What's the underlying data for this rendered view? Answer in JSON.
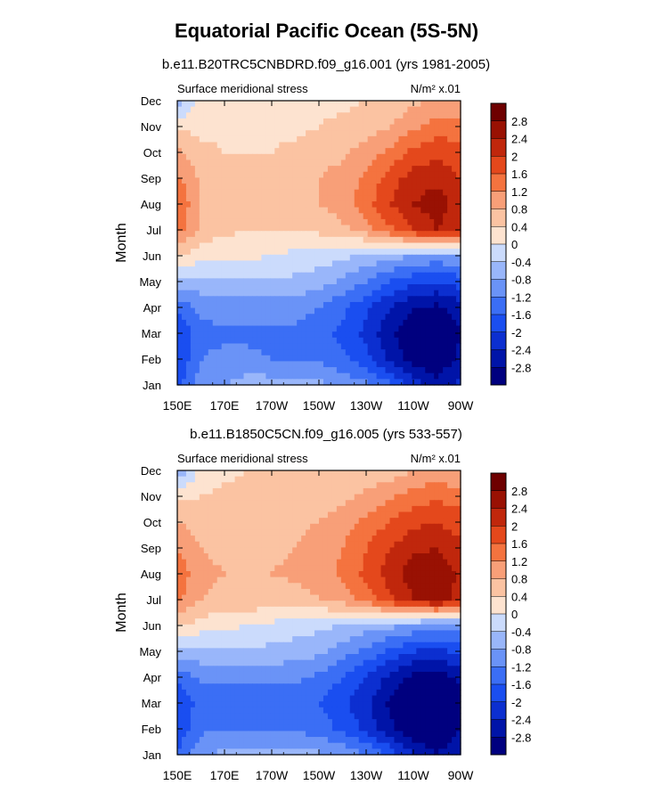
{
  "title": "Equatorial Pacific Ocean (5S-5N)",
  "colorscale": {
    "levels": [
      -2.8,
      -2.4,
      -2.0,
      -1.6,
      -1.2,
      -0.8,
      -0.4,
      0,
      0.4,
      0.8,
      1.2,
      1.6,
      2.0,
      2.4,
      2.8
    ],
    "colors": [
      "#00007f",
      "#0014a8",
      "#0c2fd0",
      "#1a4ef0",
      "#3b6ef5",
      "#6a93f7",
      "#99b6fa",
      "#cbdbfc",
      "#fde3d0",
      "#fbc3a2",
      "#f89f78",
      "#f4733f",
      "#e4481c",
      "#c0270c",
      "#991103",
      "#6e0000"
    ]
  },
  "chart_data": [
    {
      "type": "heatmap",
      "subtitle": "b.e11.B20TRC5CNBDRD.f09_g16.001 (yrs 1981-2005)",
      "left_label": "Surface meridional stress",
      "right_label": "N/m² x.01",
      "ylabel": "Month",
      "x_ticks": [
        "150E",
        "170E",
        "170W",
        "150W",
        "130W",
        "110W",
        "90W"
      ],
      "x": [
        150,
        160,
        170,
        180,
        190,
        200,
        210,
        220,
        230,
        240,
        250,
        260,
        270
      ],
      "y": [
        "Jan",
        "Feb",
        "Mar",
        "Apr",
        "May",
        "Jun",
        "Jul",
        "Aug",
        "Sep",
        "Oct",
        "Nov",
        "Dec"
      ],
      "z": [
        [
          -1.8,
          -1.0,
          -0.8,
          -0.6,
          -0.6,
          -0.6,
          -0.7,
          -0.9,
          -1.1,
          -1.5,
          -2.2,
          -2.7,
          -2.3
        ],
        [
          -2.0,
          -1.2,
          -1.1,
          -1.1,
          -1.2,
          -1.2,
          -1.3,
          -1.5,
          -1.9,
          -2.5,
          -3.0,
          -3.1,
          -2.7
        ],
        [
          -2.0,
          -1.3,
          -1.3,
          -1.3,
          -1.3,
          -1.3,
          -1.5,
          -1.7,
          -2.1,
          -2.7,
          -3.1,
          -3.2,
          -2.8
        ],
        [
          -1.5,
          -1.1,
          -1.0,
          -1.0,
          -1.0,
          -1.0,
          -1.2,
          -1.5,
          -1.9,
          -2.4,
          -2.8,
          -2.9,
          -2.6
        ],
        [
          -0.6,
          -0.5,
          -0.5,
          -0.5,
          -0.5,
          -0.5,
          -0.6,
          -0.9,
          -1.2,
          -1.6,
          -1.9,
          -2.0,
          -1.8
        ],
        [
          0.5,
          0.1,
          0.1,
          0.1,
          0.0,
          -0.1,
          -0.2,
          -0.3,
          -0.5,
          -0.6,
          -0.8,
          -0.9,
          -0.8
        ],
        [
          1.4,
          0.7,
          0.5,
          0.4,
          0.4,
          0.4,
          0.5,
          0.7,
          1.0,
          1.5,
          2.0,
          2.4,
          2.1
        ],
        [
          1.6,
          0.8,
          0.6,
          0.6,
          0.6,
          0.7,
          0.8,
          1.0,
          1.4,
          2.0,
          2.4,
          2.6,
          2.2
        ],
        [
          1.3,
          0.7,
          0.6,
          0.6,
          0.6,
          0.7,
          0.8,
          1.0,
          1.3,
          1.8,
          2.2,
          2.3,
          2.0
        ],
        [
          0.9,
          0.5,
          0.4,
          0.4,
          0.4,
          0.5,
          0.6,
          0.7,
          1.0,
          1.3,
          1.7,
          1.9,
          1.7
        ],
        [
          0.3,
          0.3,
          0.3,
          0.3,
          0.3,
          0.3,
          0.4,
          0.5,
          0.6,
          0.8,
          1.1,
          1.4,
          1.4
        ],
        [
          -0.6,
          0.1,
          0.2,
          0.3,
          0.3,
          0.3,
          0.3,
          0.3,
          0.4,
          0.5,
          0.7,
          0.9,
          0.9
        ]
      ]
    },
    {
      "type": "heatmap",
      "subtitle": "b.e11.B1850C5CN.f09_g16.005 (yrs 533-557)",
      "left_label": "Surface meridional stress",
      "right_label": "N/m² x.01",
      "ylabel": "Month",
      "x_ticks": [
        "150E",
        "170E",
        "170W",
        "150W",
        "130W",
        "110W",
        "90W"
      ],
      "x": [
        150,
        160,
        170,
        180,
        190,
        200,
        210,
        220,
        230,
        240,
        250,
        260,
        270
      ],
      "y": [
        "Jan",
        "Feb",
        "Mar",
        "Apr",
        "May",
        "Jun",
        "Jul",
        "Aug",
        "Sep",
        "Oct",
        "Nov",
        "Dec"
      ],
      "z": [
        [
          -1.6,
          -0.9,
          -0.7,
          -0.6,
          -0.6,
          -0.6,
          -0.7,
          -0.9,
          -1.2,
          -1.7,
          -2.4,
          -2.8,
          -2.5
        ],
        [
          -1.9,
          -1.3,
          -1.2,
          -1.2,
          -1.3,
          -1.3,
          -1.4,
          -1.7,
          -2.1,
          -2.7,
          -3.1,
          -3.2,
          -2.8
        ],
        [
          -2.0,
          -1.4,
          -1.4,
          -1.6,
          -1.6,
          -1.4,
          -1.6,
          -1.9,
          -2.3,
          -2.9,
          -3.2,
          -3.2,
          -2.9
        ],
        [
          -1.5,
          -1.1,
          -1.1,
          -1.1,
          -1.1,
          -1.1,
          -1.3,
          -1.6,
          -2.0,
          -2.5,
          -2.9,
          -3.0,
          -2.7
        ],
        [
          -0.6,
          -0.5,
          -0.5,
          -0.5,
          -0.5,
          -0.6,
          -0.7,
          -1.0,
          -1.3,
          -1.7,
          -2.0,
          -2.1,
          -1.9
        ],
        [
          0.5,
          0.2,
          0.1,
          0.0,
          -0.1,
          -0.2,
          -0.3,
          -0.4,
          -0.6,
          -0.7,
          -0.9,
          -1.0,
          -0.9
        ],
        [
          1.3,
          0.8,
          0.7,
          0.7,
          0.6,
          0.6,
          0.8,
          1.0,
          1.4,
          1.9,
          2.4,
          2.6,
          2.3
        ],
        [
          1.5,
          0.9,
          0.8,
          0.8,
          0.8,
          0.9,
          1.0,
          1.3,
          1.7,
          2.2,
          2.6,
          2.7,
          2.3
        ],
        [
          1.2,
          0.8,
          0.7,
          0.7,
          0.7,
          0.8,
          1.0,
          1.2,
          1.6,
          2.0,
          2.3,
          2.4,
          2.1
        ],
        [
          0.8,
          0.6,
          0.6,
          0.6,
          0.6,
          0.7,
          0.8,
          1.0,
          1.3,
          1.6,
          1.9,
          2.0,
          1.8
        ],
        [
          0.3,
          0.4,
          0.5,
          0.5,
          0.5,
          0.5,
          0.6,
          0.7,
          0.9,
          1.1,
          1.4,
          1.5,
          1.4
        ],
        [
          -0.8,
          0.1,
          0.3,
          0.4,
          0.4,
          0.4,
          0.4,
          0.4,
          0.5,
          0.6,
          0.8,
          0.9,
          0.8
        ]
      ]
    }
  ]
}
